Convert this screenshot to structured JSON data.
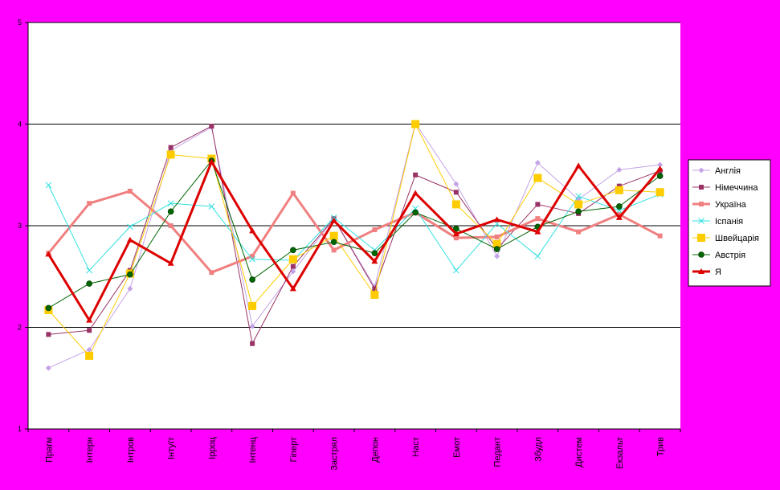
{
  "chart_data": {
    "type": "line",
    "title": "",
    "xlabel": "",
    "ylabel": "",
    "ylim": [
      1,
      5
    ],
    "yticks": [
      "1",
      "2",
      "3",
      "4",
      "5"
    ],
    "grid": true,
    "legend_position": "right",
    "categories": [
      "Прагм",
      "Інтерн",
      "Інтров",
      "Інтуїт",
      "Ірроц",
      "Інтенц",
      "Гіперт",
      "Застрял",
      "Депон",
      "Наст",
      "Емот",
      "Педант",
      "Збудл",
      "Дистем",
      "Екзальт",
      "Трив"
    ],
    "series": [
      {
        "name": "Англія",
        "color": "#c4a3e8",
        "marker": "diamond",
        "width": 1,
        "values": [
          1.6,
          1.78,
          2.38,
          3.74,
          3.97,
          2.01,
          2.55,
          3.07,
          2.4,
          4.01,
          3.41,
          2.7,
          3.62,
          3.26,
          3.55,
          3.6
        ]
      },
      {
        "name": "Німеччина",
        "color": "#993366",
        "marker": "square",
        "width": 1,
        "values": [
          1.93,
          1.97,
          2.56,
          3.77,
          3.98,
          1.84,
          2.6,
          3.07,
          2.38,
          3.5,
          3.33,
          2.77,
          3.21,
          3.12,
          3.39,
          3.54
        ]
      },
      {
        "name": "Україна",
        "color": "#f08080",
        "marker": "square",
        "width": 3,
        "values": [
          2.73,
          3.22,
          3.34,
          3.0,
          2.54,
          2.7,
          3.32,
          2.76,
          2.96,
          3.13,
          2.88,
          2.89,
          3.07,
          2.94,
          3.11,
          2.9
        ]
      },
      {
        "name": "Іспанія",
        "color": "#33e0e0",
        "marker": "x",
        "width": 1,
        "values": [
          3.4,
          2.56,
          2.99,
          3.22,
          3.19,
          2.67,
          2.66,
          3.08,
          2.76,
          3.17,
          2.56,
          3.02,
          2.7,
          3.29,
          3.15,
          3.31
        ]
      },
      {
        "name": "Швейцарія",
        "color": "#ffcc00",
        "marker": "bigsquare",
        "width": 1,
        "values": [
          2.17,
          1.72,
          2.53,
          3.7,
          3.66,
          2.21,
          2.67,
          2.9,
          2.32,
          4.0,
          3.21,
          2.82,
          3.47,
          3.21,
          3.35,
          3.33
        ]
      },
      {
        "name": "Австрія",
        "color": "#006600",
        "marker": "circle",
        "width": 1,
        "values": [
          2.19,
          2.43,
          2.52,
          3.14,
          3.64,
          2.47,
          2.76,
          2.84,
          2.73,
          3.13,
          2.97,
          2.77,
          2.99,
          3.14,
          3.19,
          3.49
        ]
      },
      {
        "name": "Я",
        "color": "#dd0000",
        "marker": "triangle",
        "width": 3,
        "values": [
          2.72,
          2.07,
          2.86,
          2.63,
          3.63,
          2.95,
          2.38,
          3.05,
          2.65,
          3.32,
          2.92,
          3.06,
          2.94,
          3.59,
          3.08,
          3.56
        ]
      }
    ]
  }
}
